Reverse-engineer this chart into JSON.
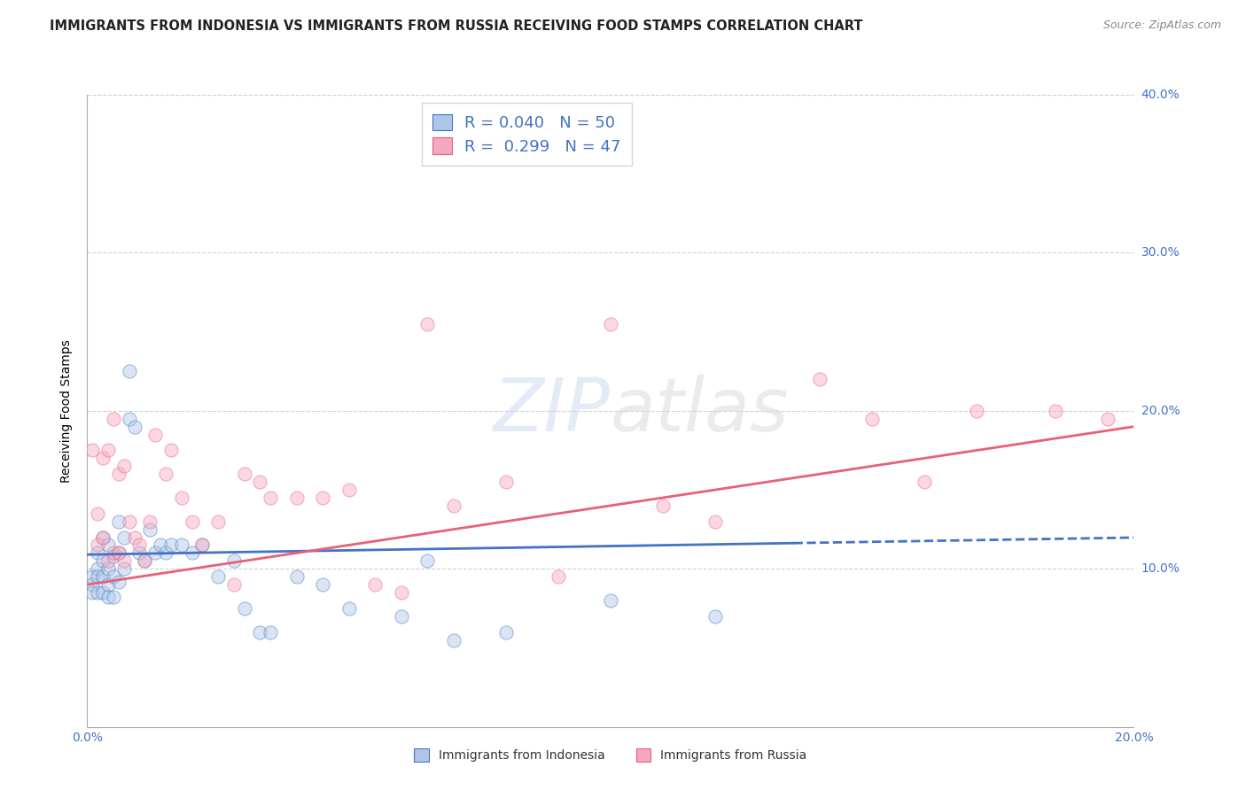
{
  "title": "IMMIGRANTS FROM INDONESIA VS IMMIGRANTS FROM RUSSIA RECEIVING FOOD STAMPS CORRELATION CHART",
  "source": "Source: ZipAtlas.com",
  "ylabel": "Receiving Food Stamps",
  "watermark": "ZIPatlas",
  "legend_indonesia": "Immigrants from Indonesia",
  "legend_russia": "Immigrants from Russia",
  "R_indonesia": 0.04,
  "N_indonesia": 50,
  "R_russia": 0.299,
  "N_russia": 47,
  "color_indonesia": "#adc6e8",
  "color_russia": "#f4a8c0",
  "color_indonesia_line": "#4472c4",
  "color_russia_line": "#e8607a",
  "color_axis_labels": "#4472c4",
  "xlim": [
    0.0,
    0.2
  ],
  "ylim": [
    0.0,
    0.4
  ],
  "xticks": [
    0.0,
    0.05,
    0.1,
    0.15,
    0.2
  ],
  "yticks": [
    0.1,
    0.2,
    0.3,
    0.4
  ],
  "background_color": "#ffffff",
  "grid_color": "#d0d0d0",
  "scatter_size": 120,
  "scatter_alpha": 0.45,
  "indonesia_x": [
    0.001,
    0.001,
    0.001,
    0.002,
    0.002,
    0.002,
    0.002,
    0.003,
    0.003,
    0.003,
    0.003,
    0.004,
    0.004,
    0.004,
    0.004,
    0.005,
    0.005,
    0.005,
    0.006,
    0.006,
    0.006,
    0.007,
    0.007,
    0.008,
    0.008,
    0.009,
    0.01,
    0.011,
    0.012,
    0.013,
    0.014,
    0.015,
    0.016,
    0.018,
    0.02,
    0.022,
    0.025,
    0.028,
    0.03,
    0.033,
    0.035,
    0.04,
    0.045,
    0.05,
    0.06,
    0.065,
    0.07,
    0.08,
    0.1,
    0.12
  ],
  "indonesia_y": [
    0.095,
    0.09,
    0.085,
    0.11,
    0.1,
    0.095,
    0.085,
    0.12,
    0.105,
    0.095,
    0.085,
    0.115,
    0.1,
    0.09,
    0.082,
    0.108,
    0.095,
    0.082,
    0.13,
    0.11,
    0.092,
    0.12,
    0.1,
    0.225,
    0.195,
    0.19,
    0.11,
    0.105,
    0.125,
    0.11,
    0.115,
    0.11,
    0.115,
    0.115,
    0.11,
    0.115,
    0.095,
    0.105,
    0.075,
    0.06,
    0.06,
    0.095,
    0.09,
    0.075,
    0.07,
    0.105,
    0.055,
    0.06,
    0.08,
    0.07
  ],
  "russia_x": [
    0.001,
    0.002,
    0.002,
    0.003,
    0.003,
    0.004,
    0.004,
    0.005,
    0.005,
    0.006,
    0.006,
    0.007,
    0.007,
    0.008,
    0.009,
    0.01,
    0.011,
    0.012,
    0.013,
    0.015,
    0.016,
    0.018,
    0.02,
    0.022,
    0.025,
    0.028,
    0.03,
    0.033,
    0.035,
    0.04,
    0.045,
    0.05,
    0.055,
    0.06,
    0.065,
    0.07,
    0.08,
    0.09,
    0.1,
    0.11,
    0.12,
    0.14,
    0.15,
    0.16,
    0.17,
    0.185,
    0.195
  ],
  "russia_y": [
    0.175,
    0.135,
    0.115,
    0.17,
    0.12,
    0.175,
    0.105,
    0.195,
    0.11,
    0.16,
    0.11,
    0.165,
    0.105,
    0.13,
    0.12,
    0.115,
    0.105,
    0.13,
    0.185,
    0.16,
    0.175,
    0.145,
    0.13,
    0.115,
    0.13,
    0.09,
    0.16,
    0.155,
    0.145,
    0.145,
    0.145,
    0.15,
    0.09,
    0.085,
    0.255,
    0.14,
    0.155,
    0.095,
    0.255,
    0.14,
    0.13,
    0.22,
    0.195,
    0.155,
    0.2,
    0.2,
    0.195
  ],
  "title_fontsize": 10.5,
  "source_fontsize": 9,
  "axis_fontsize": 10,
  "tick_fontsize": 10,
  "legend_fontsize": 13
}
